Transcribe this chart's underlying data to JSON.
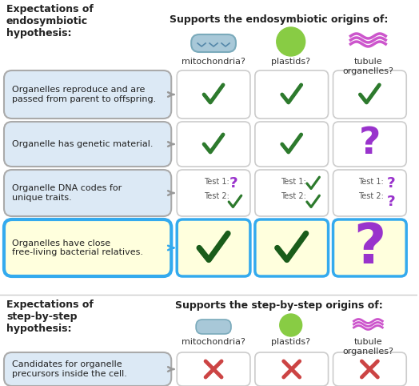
{
  "title_endo": "Supports the endosymbiotic origins of:",
  "title_step": "Supports the step-by-step origins of:",
  "left_title_endo": "Expectations of\nendosymbiotic\nhypothesis:",
  "left_title_step": "Expectations of\nstep-by-step\nhypothesis:",
  "col_labels": [
    "mitochondria?",
    "plastids?",
    "tubule\norganelles?"
  ],
  "row_labels_endo": [
    "Organelles reproduce and are\npassed from parent to offspring.",
    "Organelle has genetic material.",
    "Organelle DNA codes for\nunique traits.",
    "Organelles have close\nfree-living bacterial relatives."
  ],
  "row_labels_step": [
    "Candidates for organelle\nprecursors inside the cell."
  ],
  "bg_color": "#ffffff",
  "row_bg_normal": "#dce9f5",
  "row_bg_highlight": "#ffffdd",
  "row_border_highlight": "#33aaee",
  "left_box_border": "#aaaaaa",
  "cell_border_normal": "#cccccc",
  "cell_border_highlight": "#33aaee",
  "check_color": "#2d7a2d",
  "question_color": "#9933cc",
  "cross_color": "#cc4444",
  "check_color_dark": "#1a5c1a",
  "highlight_check_scale": 1.4
}
